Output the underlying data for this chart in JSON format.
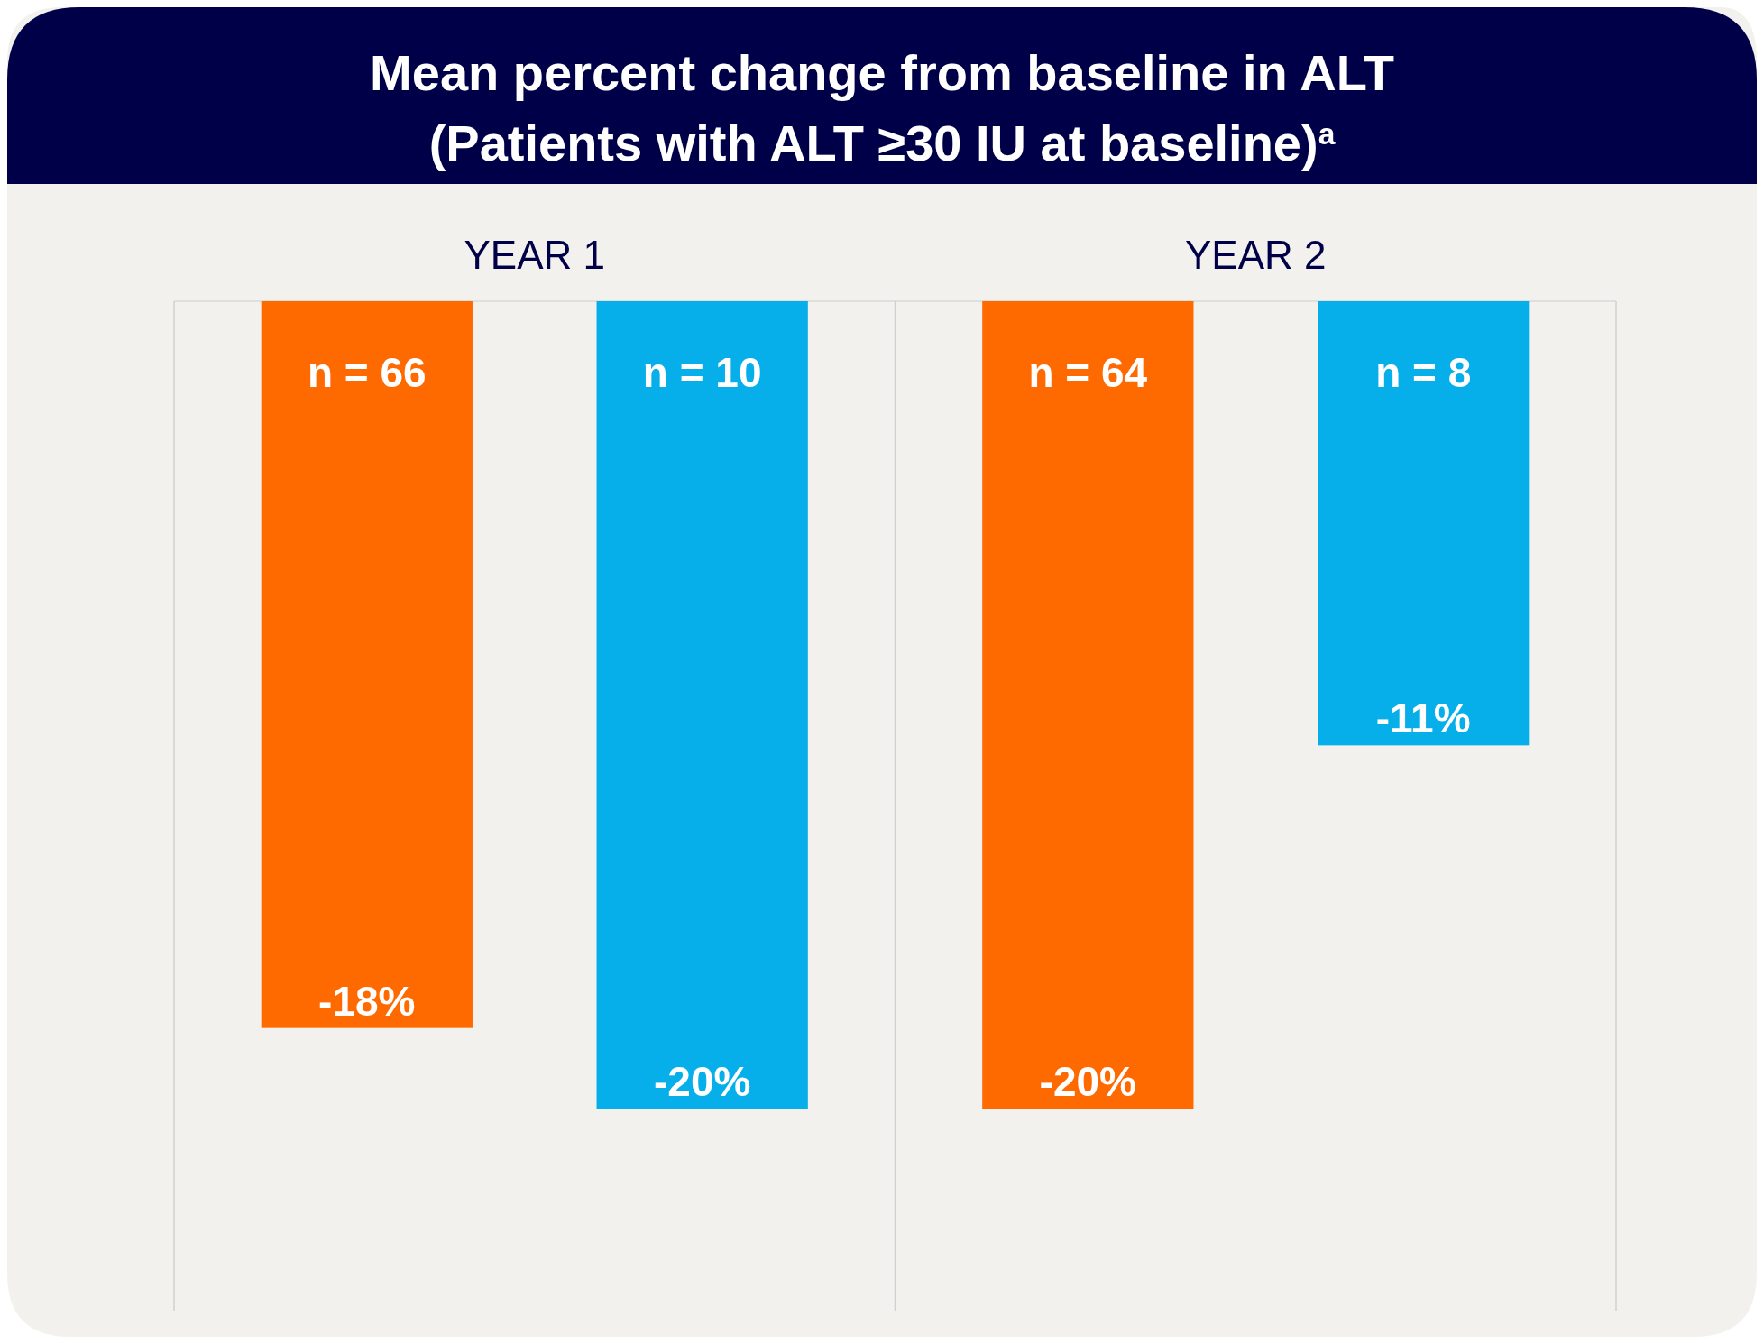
{
  "chart_data": {
    "type": "bar",
    "title": "Mean percent change from baseline in ALT",
    "subtitle": "(Patients with ALT ≥30 IU at baseline)$^{a}$",
    "categories": [
      "YEAR 1",
      "YEAR 2"
    ],
    "series": [
      {
        "color": "#ff6a00",
        "values": [
          -18,
          -20
        ],
        "value_labels": [
          "-18%",
          "-20%"
        ]
      },
      {
        "color": "#06aeea",
        "values": [
          -20,
          -11
        ],
        "value_labels": [
          "-20%",
          "-11%"
        ]
      }
    ],
    "ylim": [
      -25,
      0
    ],
    "annotations": [
      "n = 66",
      "n = 10",
      "n = 64",
      "n = 8"
    ]
  }
}
